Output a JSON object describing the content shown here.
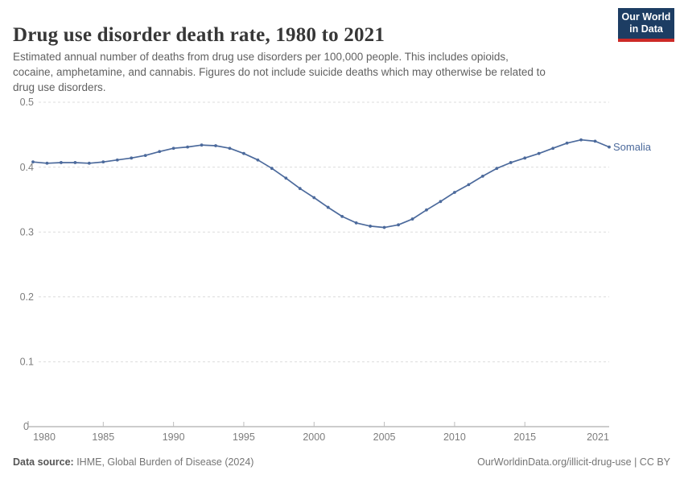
{
  "header": {
    "title": "Drug use disorder death rate, 1980 to 2021",
    "logo": {
      "line1": "Our World",
      "line2": "in Data"
    }
  },
  "subtitle_lines": [
    "Estimated annual number of deaths from drug use disorders per 100,000 people. This includes opioids,",
    "cocaine, amphetamine, and cannabis. Figures do not include suicide deaths which may otherwise be related to",
    "drug use disorders."
  ],
  "chart_data": {
    "type": "line",
    "title": "Drug use disorder death rate, 1980 to 2021",
    "xlabel": "",
    "ylabel": "",
    "ylim": [
      0,
      0.5
    ],
    "yticks": [
      0,
      0.1,
      0.2,
      0.3,
      0.4,
      0.5
    ],
    "ytick_labels": [
      "0",
      "0.1",
      "0.2",
      "0.3",
      "0.4",
      "0.5"
    ],
    "xticks": [
      1980,
      1985,
      1990,
      1995,
      2000,
      2005,
      2010,
      2015,
      2021
    ],
    "xtick_labels": [
      "1980",
      "1985",
      "1990",
      "1995",
      "2000",
      "2005",
      "2010",
      "2015",
      "2021"
    ],
    "grid": "horizontal-dashed",
    "legend_position": "end-of-line-label",
    "x": [
      1980,
      1981,
      1982,
      1983,
      1984,
      1985,
      1986,
      1987,
      1988,
      1989,
      1990,
      1991,
      1992,
      1993,
      1994,
      1995,
      1996,
      1997,
      1998,
      1999,
      2000,
      2001,
      2002,
      2003,
      2004,
      2005,
      2006,
      2007,
      2008,
      2009,
      2010,
      2011,
      2012,
      2013,
      2014,
      2015,
      2016,
      2017,
      2018,
      2019,
      2020,
      2021
    ],
    "series": [
      {
        "name": "Somalia",
        "color": "#4c6a9c",
        "values": [
          0.408,
          0.406,
          0.407,
          0.407,
          0.406,
          0.408,
          0.411,
          0.414,
          0.418,
          0.424,
          0.429,
          0.431,
          0.434,
          0.433,
          0.429,
          0.421,
          0.411,
          0.398,
          0.383,
          0.367,
          0.353,
          0.338,
          0.324,
          0.314,
          0.309,
          0.307,
          0.311,
          0.32,
          0.334,
          0.347,
          0.361,
          0.373,
          0.386,
          0.398,
          0.407,
          0.414,
          0.421,
          0.429,
          0.437,
          0.442,
          0.44,
          0.431
        ]
      }
    ]
  },
  "footer": {
    "datasource_label": "Data source:",
    "datasource_value": " IHME, Global Burden of Disease (2024)",
    "link": "OurWorldinData.org/illicit-drug-use | CC BY"
  },
  "colors": {
    "accent_line": "#4c6a9c",
    "logo_bg": "#1d3d63",
    "logo_bar": "#cc2a27",
    "title_text": "#373737",
    "subtitle_text": "#616161",
    "tick_label": "#7d7d7d",
    "gridline": "#dcdcdc",
    "axis_line": "#9a9a9a",
    "axis_tick": "#bdbdbd",
    "footer_text": "#757575"
  }
}
